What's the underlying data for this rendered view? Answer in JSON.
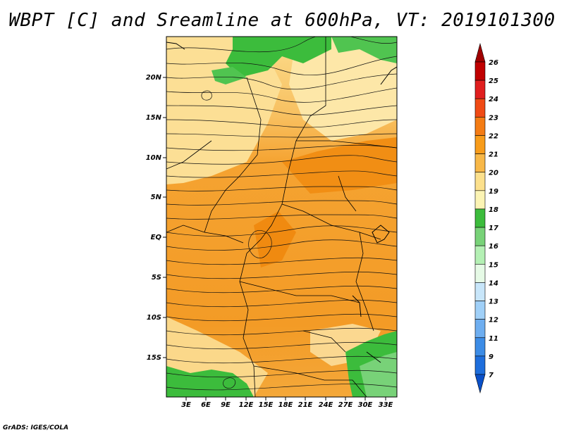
{
  "title": "WBPT [C] and Sreamline at 600hPa, VT: 2019101300",
  "credit": "GrADS: IGES/COLA",
  "map": {
    "lat_labels": [
      "20N",
      "15N",
      "10N",
      "5N",
      "EQ",
      "5S",
      "10S",
      "15S"
    ],
    "lon_labels": [
      "3E",
      "6E",
      "9E",
      "12E",
      "15E",
      "18E",
      "21E",
      "24E",
      "27E",
      "30E",
      "33E"
    ]
  },
  "colorbar": {
    "labels": [
      "26",
      "25",
      "24",
      "23",
      "22",
      "21",
      "20",
      "19",
      "18",
      "17",
      "16",
      "15",
      "14",
      "13",
      "12",
      "11",
      "9",
      "7"
    ],
    "colors": [
      "#a00000",
      "#c00000",
      "#e01e1e",
      "#f04a14",
      "#f47c14",
      "#f89c1a",
      "#f8b848",
      "#fce08c",
      "#fcf4b4",
      "#3cbc3c",
      "#78d278",
      "#b4f0b4",
      "#e6fae6",
      "#c8e6fa",
      "#a0d0f8",
      "#6eaef0",
      "#3c8ce6",
      "#1e6edc",
      "#0a50c8"
    ]
  }
}
